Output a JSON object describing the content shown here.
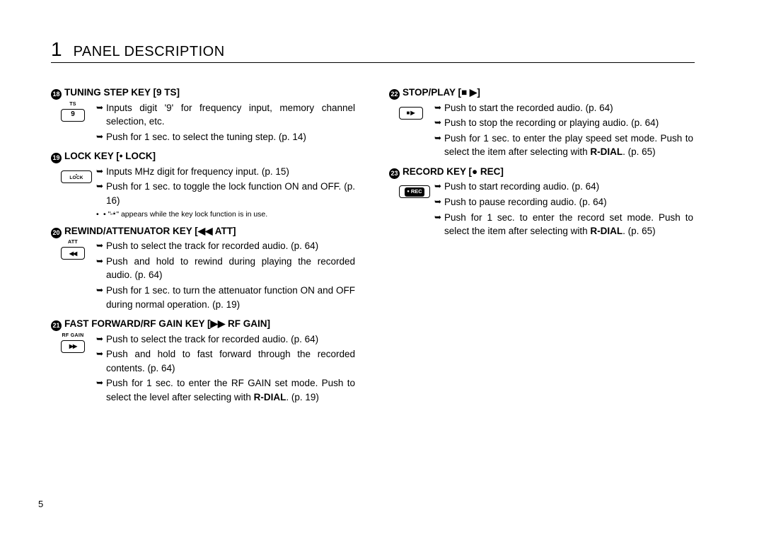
{
  "chapter": {
    "number": "1",
    "title": "PANEL DESCRIPTION"
  },
  "page_number": "5",
  "left": [
    {
      "num": "18",
      "title": "TUNING STEP KEY [9 TS]",
      "key": {
        "label": "TS",
        "glyph": "9"
      },
      "bullets": [
        "Inputs digit '9' for frequency input, memory channel selection, etc.",
        "Push for 1 sec. to select the tuning step. (p. 14)"
      ]
    },
    {
      "num": "19",
      "title": "LOCK KEY [• LOCK]",
      "key": {
        "label": "",
        "glyph": "LOCK",
        "dot": true,
        "wide": true
      },
      "bullets": [
        "Inputs MHz digit for frequency input. (p. 15)",
        "Push for 1 sec. to toggle the lock function ON and OFF. (p. 16)"
      ],
      "subnote_pre": "• \"",
      "subnote_post": "\" appears while the key lock function is in use."
    },
    {
      "num": "20",
      "title": "REWIND/ATTENUATOR KEY [◀◀ ATT]",
      "key": {
        "label": "ATT",
        "glyph": "◀◀"
      },
      "bullets": [
        "Push to select the track for recorded audio. (p. 64)",
        "Push and hold to rewind during playing the recorded audio. (p. 64)",
        "Push for 1 sec. to turn the attenuator function ON and OFF during normal operation. (p. 19)"
      ]
    },
    {
      "num": "21",
      "title": "FAST FORWARD/RF GAIN KEY [▶▶ RF GAIN]",
      "key": {
        "label": "RF GAIN",
        "glyph": "▶▶"
      },
      "bullets": [
        "Push to select the track for recorded audio. (p. 64)",
        "Push and hold to fast forward through the recorded contents. (p.  64)",
        "Push for 1 sec. to enter the RF GAIN set mode. Push to select the level after selecting with <b>R-DIAL</b>. (p. 19)"
      ]
    }
  ],
  "right": [
    {
      "num": "22",
      "title": "STOP/PLAY [■ ▶]",
      "key": {
        "label": "",
        "glyph": "■▶"
      },
      "bullets": [
        "Push to start the recorded audio. (p. 64)",
        "Push to stop the recording or playing audio. (p. 64)",
        "Push for 1 sec. to enter the play speed set mode. Push to select the item after selecting with <b>R-DIAL</b>. (p. 65)"
      ]
    },
    {
      "num": "23",
      "title": "RECORD KEY [● REC]",
      "key": {
        "label": "",
        "glyph": "●REC",
        "wide": true,
        "rec": true
      },
      "bullets": [
        "Push to start recording audio. (p. 64)",
        "Push to pause recording audio. (p. 64)",
        "Push for 1 sec. to enter the record set mode. Push to select the item after selecting with <b>R-DIAL</b>. (p. 65)"
      ]
    }
  ]
}
